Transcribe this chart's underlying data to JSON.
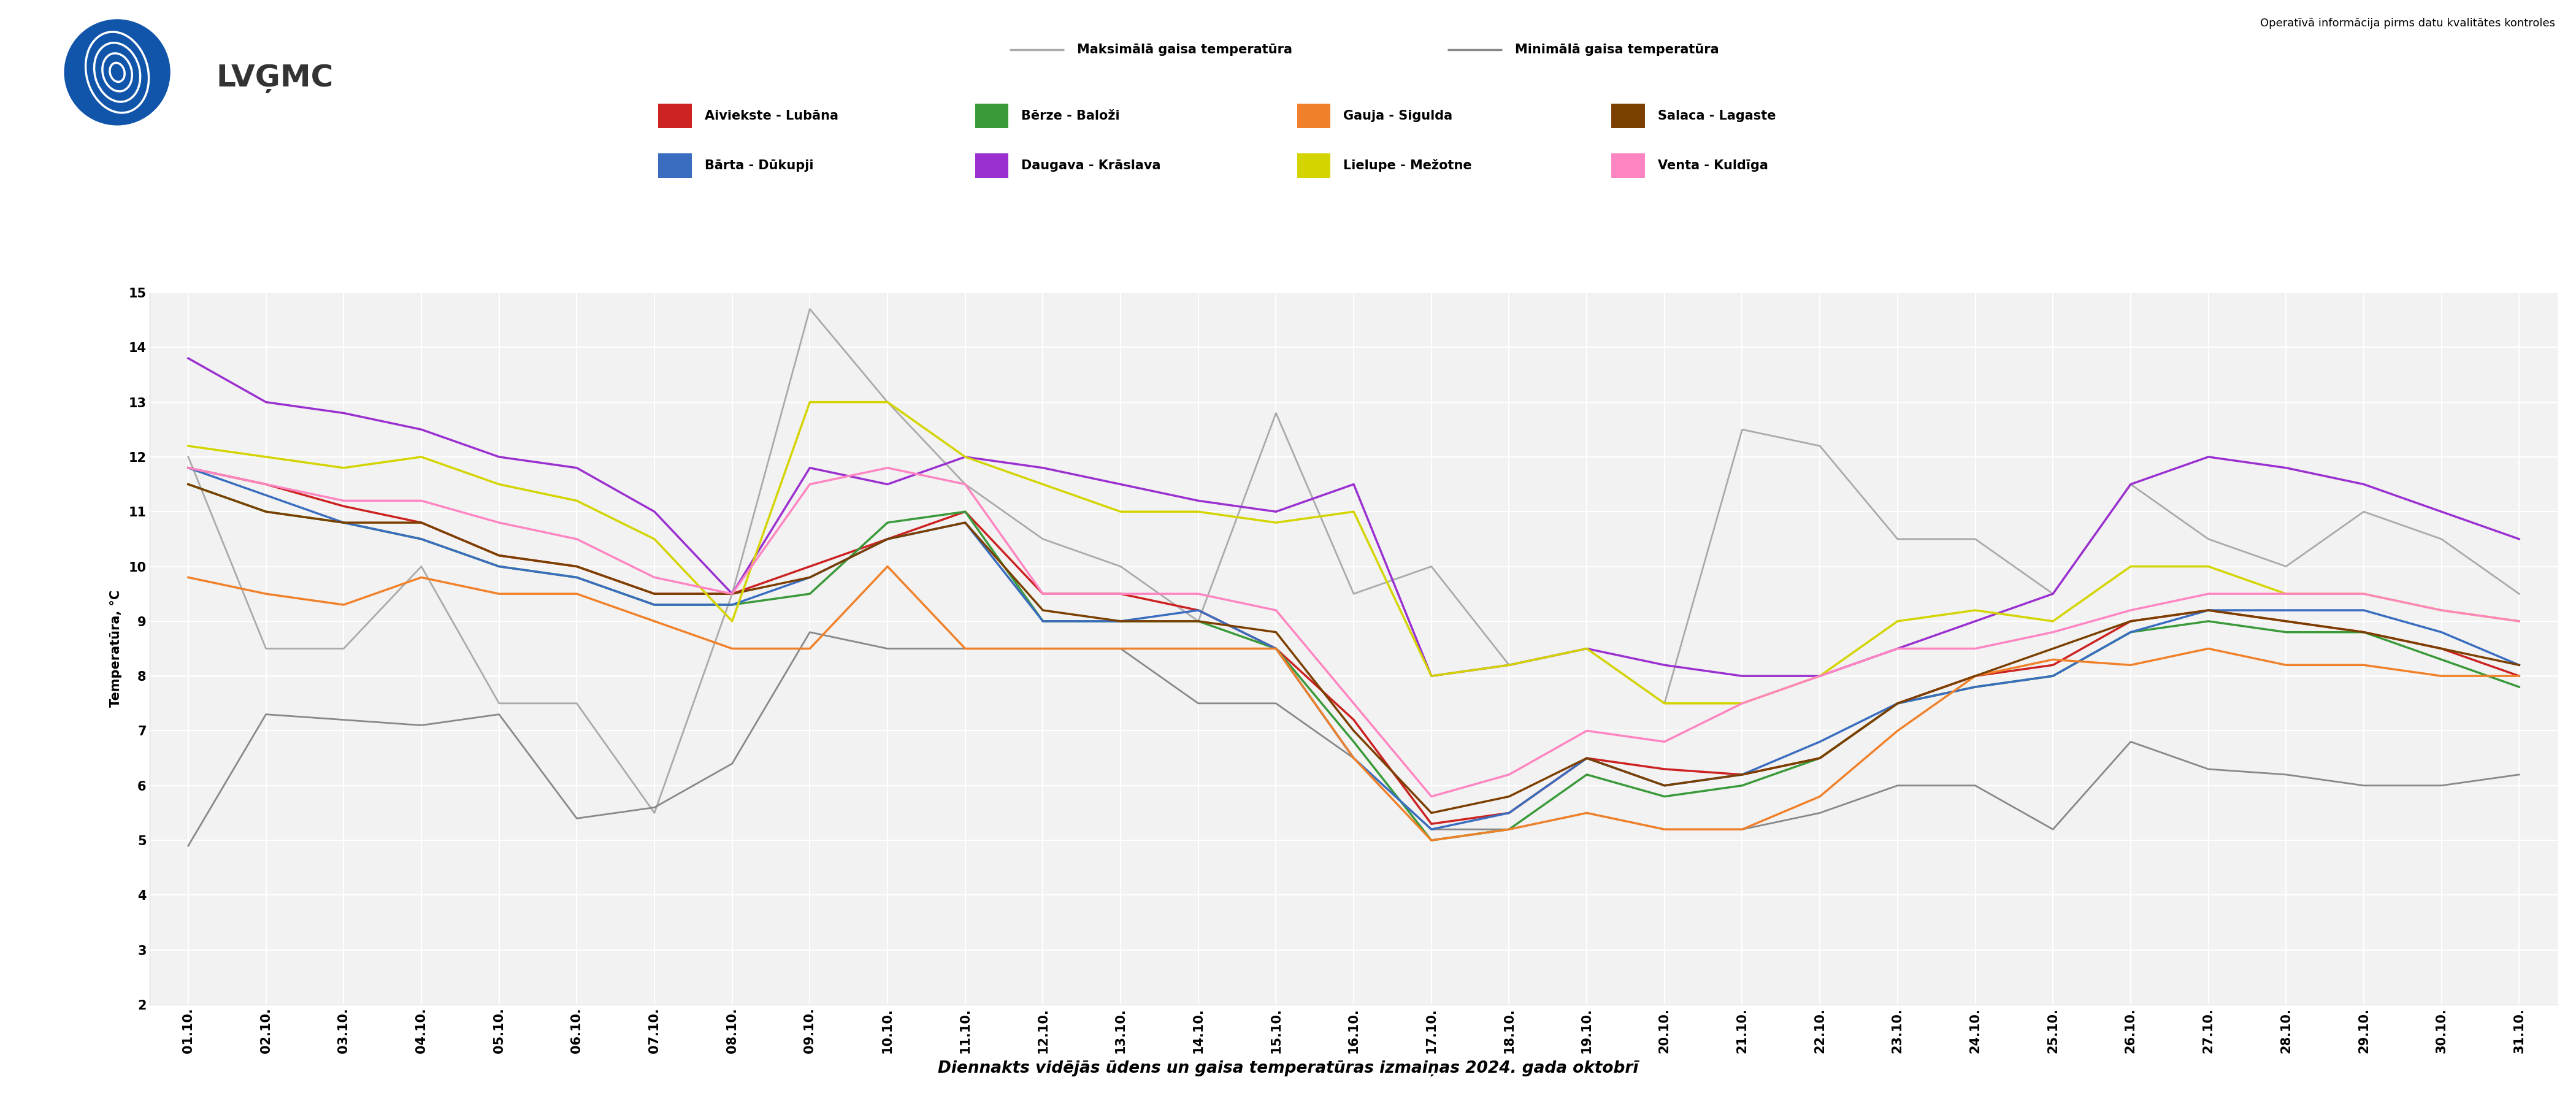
{
  "title": "Diennakts vidējās ūdens un gaisa temperatūras izmaiņas 2024. gada oktobrī",
  "ylabel": "Temperatūra, °C",
  "operativ_text": "Operatīvā informācija pirms datu kvalitātes kontroles",
  "legend_air": [
    {
      "label": "Maksimālā gaisa temperatūra",
      "color": "#aaaaaa"
    },
    {
      "label": "Minimālā gaisa temperatūra",
      "color": "#888888"
    }
  ],
  "series": [
    {
      "label": "Aiviekste - Lubāna",
      "color": "#cc2222",
      "values": [
        11.8,
        11.5,
        11.1,
        10.8,
        10.2,
        10.0,
        9.5,
        9.5,
        10.0,
        10.5,
        11.0,
        9.5,
        9.5,
        9.2,
        8.5,
        7.2,
        5.3,
        5.5,
        6.5,
        6.3,
        6.2,
        6.5,
        7.5,
        8.0,
        8.2,
        9.0,
        9.2,
        9.0,
        8.8,
        8.5,
        8.0
      ]
    },
    {
      "label": "Bērze - Baloži",
      "color": "#3a9a3a",
      "values": [
        11.5,
        11.0,
        10.8,
        10.5,
        10.0,
        9.8,
        9.3,
        9.3,
        9.5,
        10.8,
        11.0,
        9.0,
        9.0,
        9.0,
        8.5,
        6.8,
        5.0,
        5.2,
        6.2,
        5.8,
        6.0,
        6.5,
        7.5,
        7.8,
        8.0,
        8.8,
        9.0,
        8.8,
        8.8,
        8.3,
        7.8
      ]
    },
    {
      "label": "Bārta - Dūkupji",
      "color": "#3a6dbf",
      "values": [
        11.8,
        11.3,
        10.8,
        10.5,
        10.0,
        9.8,
        9.3,
        9.3,
        9.8,
        10.5,
        10.8,
        9.0,
        9.0,
        9.2,
        8.5,
        6.5,
        5.2,
        5.5,
        6.5,
        6.0,
        6.2,
        6.8,
        7.5,
        7.8,
        8.0,
        8.8,
        9.2,
        9.2,
        9.2,
        8.8,
        8.2
      ]
    },
    {
      "label": "Daugava - Krāslava",
      "color": "#9b30d0",
      "values": [
        13.8,
        13.0,
        12.8,
        12.5,
        12.0,
        11.8,
        11.0,
        9.5,
        11.8,
        11.5,
        12.0,
        11.8,
        11.5,
        11.2,
        11.0,
        11.5,
        8.0,
        8.2,
        8.5,
        8.2,
        8.0,
        8.0,
        8.5,
        9.0,
        9.5,
        11.5,
        12.0,
        11.8,
        11.5,
        11.0,
        10.5
      ]
    },
    {
      "label": "Gauja - Sigulda",
      "color": "#f0812a",
      "values": [
        9.8,
        9.5,
        9.3,
        9.8,
        9.5,
        9.5,
        9.0,
        8.5,
        8.5,
        10.0,
        8.5,
        8.5,
        8.5,
        8.5,
        8.5,
        6.5,
        5.0,
        5.2,
        5.5,
        5.2,
        5.2,
        5.8,
        7.0,
        8.0,
        8.3,
        8.2,
        8.5,
        8.2,
        8.2,
        8.0,
        8.0
      ]
    },
    {
      "label": "Salaca - Lagaste",
      "color": "#7b3f00",
      "values": [
        11.5,
        11.0,
        10.8,
        10.8,
        10.2,
        10.0,
        9.5,
        9.5,
        9.8,
        10.5,
        10.8,
        9.2,
        9.0,
        9.0,
        8.8,
        7.0,
        5.5,
        5.8,
        6.5,
        6.0,
        6.2,
        6.5,
        7.5,
        8.0,
        8.5,
        9.0,
        9.2,
        9.0,
        8.8,
        8.5,
        8.2
      ]
    },
    {
      "label": "Lielupe - Mežotne",
      "color": "#d4d400",
      "values": [
        12.2,
        12.0,
        11.8,
        12.0,
        11.5,
        11.2,
        10.5,
        9.0,
        13.0,
        13.0,
        12.0,
        11.5,
        11.0,
        11.0,
        10.8,
        11.0,
        8.0,
        8.2,
        8.5,
        7.5,
        7.5,
        8.0,
        9.0,
        9.2,
        9.0,
        10.0,
        10.0,
        9.5,
        9.5,
        9.2,
        9.0
      ]
    },
    {
      "label": "Venta - Kuldīga",
      "color": "#ff85c2",
      "values": [
        11.8,
        11.5,
        11.2,
        11.2,
        10.8,
        10.5,
        9.8,
        9.5,
        11.5,
        11.8,
        11.5,
        9.5,
        9.5,
        9.5,
        9.2,
        7.5,
        5.8,
        6.2,
        7.0,
        6.8,
        7.5,
        8.0,
        8.5,
        8.5,
        8.8,
        9.2,
        9.5,
        9.5,
        9.5,
        9.2,
        9.0
      ]
    }
  ],
  "max_air_temp": [
    12.0,
    8.5,
    8.5,
    10.0,
    7.5,
    7.5,
    5.5,
    9.5,
    14.7,
    13.0,
    11.5,
    10.5,
    10.0,
    9.0,
    12.8,
    9.5,
    10.0,
    8.2,
    8.5,
    7.5,
    12.5,
    12.2,
    10.5,
    10.5,
    9.5,
    11.5,
    10.5,
    10.0,
    11.0,
    10.5,
    9.5
  ],
  "min_air_temp": [
    4.9,
    7.3,
    7.2,
    7.1,
    7.3,
    5.4,
    5.6,
    6.4,
    8.8,
    8.5,
    8.5,
    8.5,
    8.5,
    7.5,
    7.5,
    6.5,
    5.2,
    5.2,
    5.5,
    5.2,
    5.2,
    5.5,
    6.0,
    6.0,
    5.2,
    6.8,
    6.3,
    6.2,
    6.0,
    6.0,
    6.2
  ],
  "x_labels": [
    "01.10.",
    "02.10.",
    "03.10.",
    "04.10.",
    "05.10.",
    "06.10.",
    "07.10.",
    "08.10.",
    "09.10.",
    "10.10.",
    "11.10.",
    "12.10.",
    "13.10.",
    "14.10.",
    "15.10.",
    "16.10.",
    "17.10.",
    "18.10.",
    "19.10.",
    "20.10.",
    "21.10.",
    "22.10.",
    "23.10.",
    "24.10.",
    "25.10.",
    "26.10.",
    "27.10.",
    "28.10.",
    "29.10.",
    "30.10.",
    "31.10."
  ],
  "ylim": [
    2,
    15
  ],
  "yticks": [
    2,
    3,
    4,
    5,
    6,
    7,
    8,
    9,
    10,
    11,
    12,
    13,
    14,
    15
  ],
  "lw": 2.5
}
